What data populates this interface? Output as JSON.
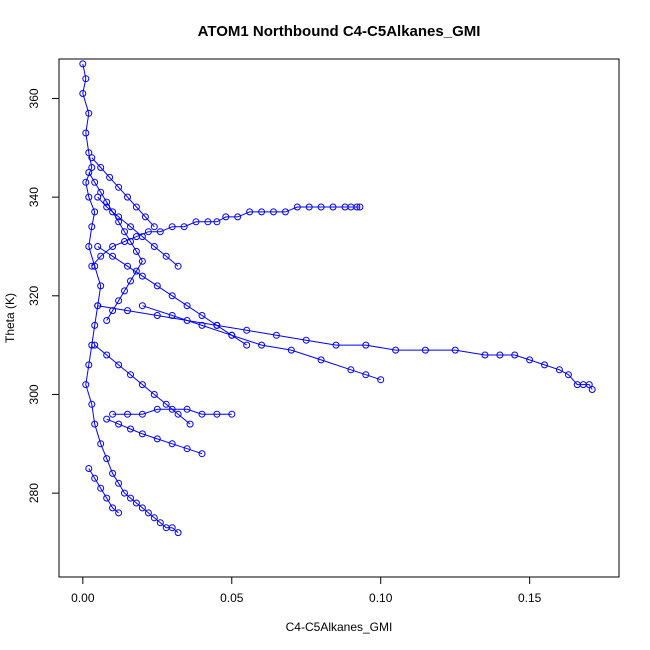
{
  "chart_data": {
    "type": "scatter",
    "title": "ATOM1 Northbound C4-C5Alkanes_GMI",
    "xlabel": "C4-C5Alkanes_GMI",
    "ylabel": "Theta (K)",
    "xlim": [
      -0.008,
      0.18
    ],
    "ylim": [
      263,
      368
    ],
    "x_ticks": [
      0.0,
      0.05,
      0.1,
      0.15
    ],
    "x_tick_labels": [
      "0.00",
      "0.05",
      "0.10",
      "0.15"
    ],
    "y_ticks": [
      280,
      300,
      320,
      340,
      360
    ],
    "y_tick_labels": [
      "280",
      "300",
      "320",
      "340",
      "360"
    ],
    "marker": "open-circle",
    "connected": true,
    "color": "#0000ff",
    "grid": false,
    "series": [
      {
        "x": [
          0.0,
          0.001,
          0.0,
          0.002,
          0.001,
          0.002,
          0.003,
          0.001,
          0.002,
          0.004,
          0.003,
          0.002,
          0.004,
          0.006,
          0.005,
          0.004,
          0.003,
          0.002,
          0.001,
          0.003,
          0.004,
          0.006,
          0.008,
          0.01,
          0.012,
          0.014,
          0.016,
          0.018,
          0.02,
          0.022,
          0.024,
          0.026,
          0.028,
          0.03,
          0.032
        ],
        "y": [
          367,
          364,
          361,
          357,
          353,
          349,
          346,
          343,
          340,
          337,
          334,
          330,
          326,
          322,
          318,
          314,
          310,
          306,
          302,
          298,
          294,
          290,
          287,
          284,
          282,
          280,
          279,
          278,
          277,
          276,
          275,
          274,
          273,
          273,
          272
        ]
      },
      {
        "x": [
          0.003,
          0.006,
          0.01,
          0.014,
          0.018,
          0.022,
          0.026,
          0.03,
          0.034,
          0.038,
          0.042,
          0.045,
          0.048,
          0.052,
          0.056,
          0.06,
          0.064,
          0.068,
          0.072,
          0.076,
          0.08,
          0.084,
          0.088,
          0.09,
          0.092,
          0.093
        ],
        "y": [
          326,
          328,
          330,
          331,
          332,
          333,
          333,
          334,
          334,
          335,
          335,
          335,
          336,
          336,
          337,
          337,
          337,
          337,
          338,
          338,
          338,
          338,
          338,
          338,
          338,
          338
        ]
      },
      {
        "x": [
          0.005,
          0.015,
          0.025,
          0.035,
          0.045,
          0.055,
          0.065,
          0.075,
          0.085,
          0.095,
          0.105,
          0.115,
          0.125,
          0.135,
          0.14,
          0.145,
          0.15,
          0.155,
          0.16,
          0.163,
          0.166,
          0.168,
          0.17,
          0.171
        ],
        "y": [
          318,
          317,
          316,
          315,
          314,
          313,
          312,
          311,
          310,
          310,
          309,
          309,
          309,
          308,
          308,
          308,
          307,
          306,
          305,
          304,
          302,
          302,
          302,
          301
        ]
      },
      {
        "x": [
          0.02,
          0.03,
          0.04,
          0.05,
          0.06,
          0.07,
          0.08,
          0.09,
          0.095,
          0.1
        ],
        "y": [
          318,
          316,
          314,
          312,
          310,
          309,
          307,
          305,
          304,
          303
        ]
      },
      {
        "x": [
          0.01,
          0.015,
          0.02,
          0.025,
          0.03,
          0.035,
          0.04,
          0.045,
          0.05
        ],
        "y": [
          296,
          296,
          296,
          297,
          297,
          297,
          296,
          296,
          296
        ]
      },
      {
        "x": [
          0.008,
          0.012,
          0.016,
          0.02,
          0.025,
          0.03,
          0.035,
          0.04
        ],
        "y": [
          295,
          294,
          293,
          292,
          291,
          290,
          289,
          288
        ]
      },
      {
        "x": [
          0.005,
          0.01,
          0.015,
          0.02,
          0.025,
          0.03,
          0.035,
          0.04,
          0.045,
          0.05,
          0.055
        ],
        "y": [
          330,
          328,
          326,
          324,
          322,
          320,
          318,
          316,
          314,
          312,
          310
        ]
      },
      {
        "x": [
          0.005,
          0.008,
          0.012,
          0.016,
          0.02,
          0.024,
          0.028,
          0.032
        ],
        "y": [
          340,
          338,
          336,
          334,
          332,
          330,
          328,
          326
        ]
      },
      {
        "x": [
          0.002,
          0.004,
          0.006,
          0.008,
          0.01,
          0.012,
          0.014,
          0.016,
          0.018,
          0.02,
          0.018,
          0.016,
          0.014,
          0.012,
          0.01,
          0.008
        ],
        "y": [
          345,
          343,
          341,
          339,
          337,
          335,
          333,
          331,
          329,
          327,
          325,
          323,
          321,
          319,
          317,
          315
        ]
      },
      {
        "x": [
          0.003,
          0.006,
          0.009,
          0.012,
          0.015,
          0.018,
          0.021,
          0.024
        ],
        "y": [
          348,
          346,
          344,
          342,
          340,
          338,
          336,
          334
        ]
      },
      {
        "x": [
          0.004,
          0.008,
          0.012,
          0.016,
          0.02,
          0.024,
          0.028,
          0.032,
          0.036
        ],
        "y": [
          310,
          308,
          306,
          304,
          302,
          300,
          298,
          296,
          294
        ]
      },
      {
        "x": [
          0.002,
          0.004,
          0.006,
          0.008,
          0.01,
          0.012
        ],
        "y": [
          285,
          283,
          281,
          279,
          277,
          276
        ]
      }
    ]
  }
}
